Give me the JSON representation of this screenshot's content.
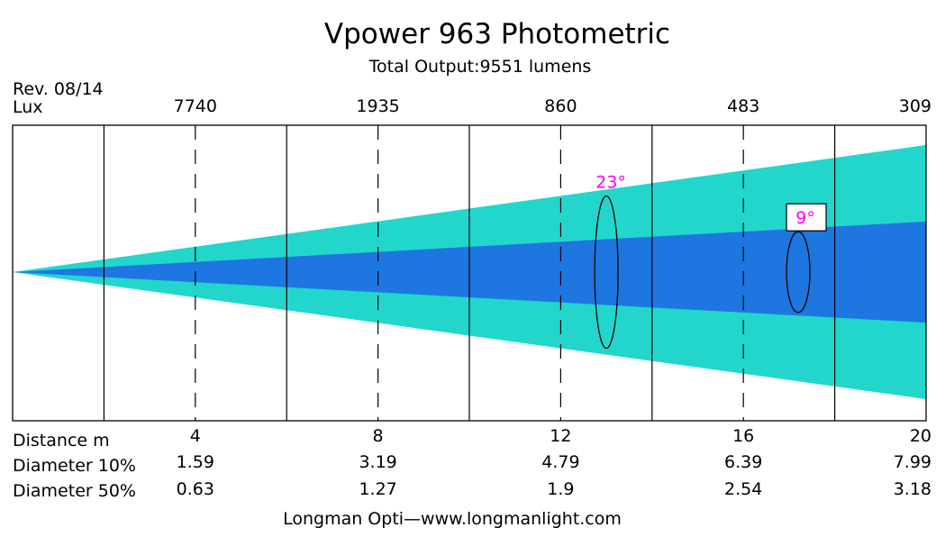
{
  "chart_data": {
    "type": "photometric_beam",
    "title": "Vpower 963 Photometric",
    "subtitle": "Total Output:9551 lumens",
    "revision": "Rev. 08/14",
    "lux_label": "Lux",
    "distance_label": "Distance m",
    "diameter10_label": "Diameter 10%",
    "diameter50_label": "Diameter 50%",
    "footer": "Longman Opti—www.longmanlight.com",
    "x_range": [
      0,
      20
    ],
    "distances": [
      4,
      8,
      12,
      16,
      20
    ],
    "distance_labels": [
      "4",
      "8",
      "12",
      "16",
      "20"
    ],
    "lux_values": [
      "7740",
      "1935",
      "860",
      "483",
      "309"
    ],
    "diameter_10": [
      "1.59",
      "3.19",
      "4.79",
      "6.39",
      "7.99"
    ],
    "diameter_50": [
      "0.63",
      "1.27",
      "1.9",
      "2.54",
      "3.18"
    ],
    "diameter_10_at_max": 7.99,
    "diameter_50_at_max": 3.18,
    "grid_lines": [
      2,
      6,
      10,
      14,
      18
    ],
    "dashed_lines": [
      4,
      8,
      12,
      16
    ],
    "beam_angles": [
      {
        "label": "23°",
        "at_distance": 13.0,
        "diameter": 4.79,
        "boxed": false
      },
      {
        "label": "9°",
        "at_distance": 17.2,
        "diameter": 2.54,
        "boxed": true
      }
    ],
    "colors": {
      "field_10": "#22d6cc",
      "beam_50": "#1e76e0",
      "angle_label": "#ff00ff",
      "lines": "#000000"
    }
  }
}
